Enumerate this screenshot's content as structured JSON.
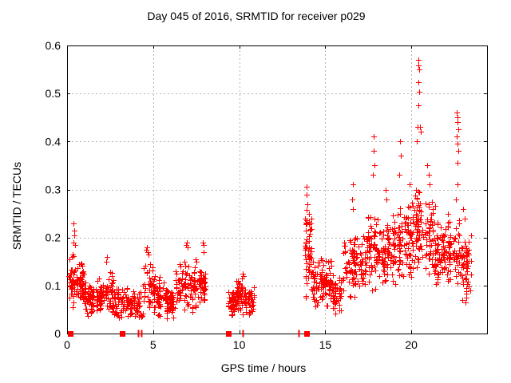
{
  "window": {
    "background": "#ffffff"
  },
  "chart_data": {
    "type": "scatter",
    "title": "Day 045 of 2016, SRMTID for receiver p029",
    "xlabel": "GPS time / hours",
    "ylabel": "SRMTID / TECUs",
    "xlim": [
      0,
      24.4
    ],
    "ylim": [
      0,
      0.6
    ],
    "xticks": {
      "values": [
        0,
        5,
        10,
        15,
        20
      ],
      "labels": [
        "0",
        "5",
        "10",
        "15",
        "20"
      ]
    },
    "yticks": {
      "values": [
        0,
        0.1,
        0.2,
        0.3,
        0.4,
        0.5,
        0.6
      ],
      "labels": [
        "0",
        "0.1",
        "0.2",
        "0.3",
        "0.4",
        "0.5",
        "0.6"
      ]
    },
    "grid": {
      "show": true,
      "color": "#b5b5b5",
      "dash": "2,3"
    },
    "frame_color": "#000000",
    "marker": {
      "type": "plus",
      "size": 7,
      "color": "#ff0000"
    },
    "series": [
      {
        "name": "srmtid-points",
        "type": "generated-scatter",
        "seed": 2016045,
        "jitter_width": 0.09,
        "segments": [
          [
            0.1,
            0.5,
            40,
            0.05,
            0.17
          ],
          [
            0.5,
            1.0,
            55,
            0.05,
            0.155
          ],
          [
            1.0,
            1.6,
            50,
            0.03,
            0.115
          ],
          [
            1.6,
            2.1,
            45,
            0.03,
            0.12
          ],
          [
            2.1,
            2.7,
            50,
            0.035,
            0.145
          ],
          [
            2.7,
            3.3,
            45,
            0.03,
            0.105
          ],
          [
            3.3,
            3.9,
            40,
            0.025,
            0.1
          ],
          [
            3.9,
            4.4,
            35,
            0.02,
            0.09
          ],
          [
            4.4,
            5.1,
            55,
            0.04,
            0.155
          ],
          [
            5.1,
            5.7,
            45,
            0.03,
            0.12
          ],
          [
            5.7,
            6.3,
            55,
            0.025,
            0.1
          ],
          [
            6.3,
            7.1,
            55,
            0.04,
            0.155
          ],
          [
            7.1,
            7.6,
            45,
            0.04,
            0.145
          ],
          [
            7.6,
            8.05,
            40,
            0.05,
            0.15
          ],
          [
            9.35,
            9.8,
            45,
            0.03,
            0.1
          ],
          [
            9.8,
            10.35,
            55,
            0.03,
            0.115
          ],
          [
            10.35,
            10.85,
            45,
            0.03,
            0.1
          ],
          [
            13.75,
            14.2,
            55,
            0.06,
            0.27
          ],
          [
            14.2,
            14.8,
            50,
            0.05,
            0.18
          ],
          [
            14.8,
            15.4,
            50,
            0.05,
            0.16
          ],
          [
            15.4,
            16.0,
            50,
            0.04,
            0.125
          ],
          [
            16.0,
            16.7,
            55,
            0.06,
            0.21
          ],
          [
            16.7,
            17.4,
            55,
            0.08,
            0.22
          ],
          [
            17.4,
            18.1,
            60,
            0.08,
            0.26
          ],
          [
            18.1,
            18.8,
            60,
            0.09,
            0.25
          ],
          [
            18.8,
            19.5,
            60,
            0.1,
            0.27
          ],
          [
            19.5,
            20.1,
            55,
            0.1,
            0.28
          ],
          [
            20.1,
            20.7,
            60,
            0.1,
            0.32
          ],
          [
            20.7,
            21.4,
            60,
            0.1,
            0.28
          ],
          [
            21.4,
            22.1,
            60,
            0.09,
            0.24
          ],
          [
            22.1,
            22.8,
            60,
            0.09,
            0.26
          ],
          [
            22.8,
            23.45,
            55,
            0.06,
            0.21
          ]
        ],
        "extra_points": [
          [
            0.15,
            0.155
          ],
          [
            0.36,
            0.19
          ],
          [
            0.38,
            0.23
          ],
          [
            0.4,
            0.215
          ],
          [
            0.42,
            0.205
          ],
          [
            0.45,
            0.185
          ],
          [
            2.25,
            0.15
          ],
          [
            2.3,
            0.16
          ],
          [
            4.6,
            0.175
          ],
          [
            4.65,
            0.18
          ],
          [
            4.7,
            0.17
          ],
          [
            4.75,
            0.165
          ],
          [
            6.9,
            0.185
          ],
          [
            6.95,
            0.19
          ],
          [
            7.0,
            0.18
          ],
          [
            7.45,
            0.155
          ],
          [
            7.5,
            0.15
          ],
          [
            7.9,
            0.19
          ],
          [
            7.92,
            0.17
          ],
          [
            7.95,
            0.185
          ],
          [
            10.15,
            0.115
          ],
          [
            10.2,
            0.125
          ],
          [
            10.25,
            0.12
          ],
          [
            13.9,
            0.305
          ],
          [
            13.92,
            0.29
          ],
          [
            13.98,
            0.27
          ],
          [
            14.05,
            0.25
          ],
          [
            16.55,
            0.28
          ],
          [
            16.6,
            0.31
          ],
          [
            16.62,
            0.26
          ],
          [
            17.75,
            0.33
          ],
          [
            17.8,
            0.41
          ],
          [
            17.82,
            0.38
          ],
          [
            17.85,
            0.35
          ],
          [
            18.5,
            0.3
          ],
          [
            18.55,
            0.28
          ],
          [
            19.3,
            0.33
          ],
          [
            19.35,
            0.4
          ],
          [
            19.4,
            0.37
          ],
          [
            19.9,
            0.31
          ],
          [
            20.3,
            0.4
          ],
          [
            20.35,
            0.43
          ],
          [
            20.4,
            0.57
          ],
          [
            20.42,
            0.558
          ],
          [
            20.44,
            0.55
          ],
          [
            20.4,
            0.524
          ],
          [
            20.45,
            0.504
          ],
          [
            20.41,
            0.475
          ],
          [
            20.5,
            0.43
          ],
          [
            20.55,
            0.42
          ],
          [
            20.9,
            0.35
          ],
          [
            21.0,
            0.33
          ],
          [
            21.05,
            0.31
          ],
          [
            22.6,
            0.28
          ],
          [
            22.65,
            0.46
          ],
          [
            22.66,
            0.41
          ],
          [
            22.68,
            0.44
          ],
          [
            22.68,
            0.31
          ],
          [
            22.7,
            0.45
          ],
          [
            22.7,
            0.395
          ],
          [
            22.7,
            0.355
          ],
          [
            22.72,
            0.425
          ],
          [
            22.74,
            0.38
          ],
          [
            23.0,
            0.26
          ],
          [
            23.1,
            0.24
          ]
        ]
      },
      {
        "name": "zero-flags",
        "marker": "square",
        "size": 7,
        "color": "#ff0000",
        "squares_x": [
          0.2,
          3.2,
          9.35,
          13.9
        ],
        "bars_x": [
          4.15,
          4.3,
          10.2,
          13.45
        ]
      }
    ]
  }
}
